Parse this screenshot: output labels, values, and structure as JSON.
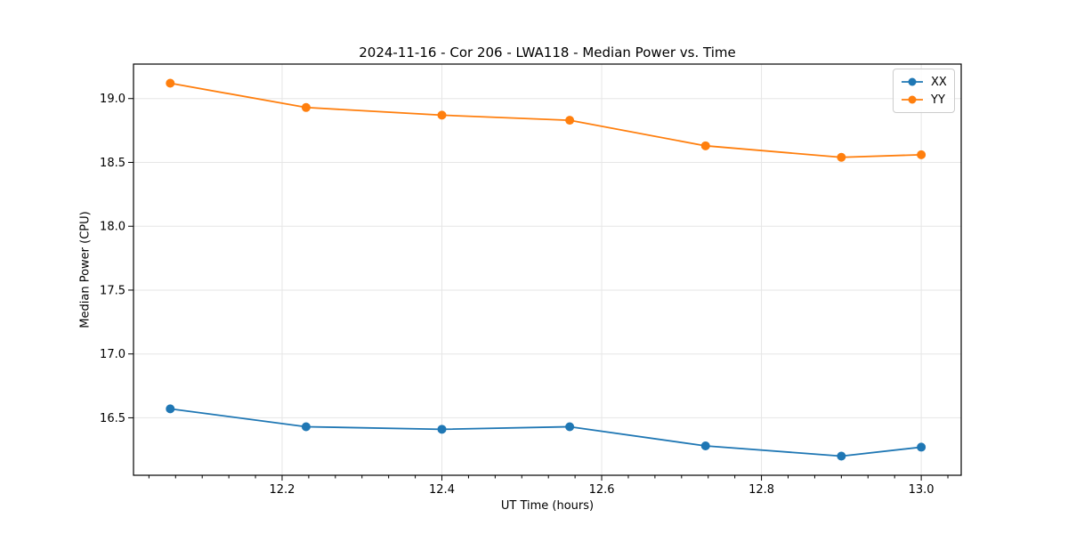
{
  "chart_data": {
    "type": "line",
    "title": "2024-11-16 - Cor 206 - LWA118 - Median Power vs. Time",
    "xlabel": "UT Time (hours)",
    "ylabel": "Median Power (CPU)",
    "xlim": [
      12.014,
      13.05
    ],
    "ylim": [
      16.05,
      19.27
    ],
    "x_ticks": [
      12.2,
      12.4,
      12.6,
      12.8,
      13.0
    ],
    "x_tick_labels": [
      "12.2",
      "12.4",
      "12.6",
      "12.8",
      "13.0"
    ],
    "x_minor_divisions": 6,
    "y_ticks": [
      16.5,
      17.0,
      17.5,
      18.0,
      18.5,
      19.0
    ],
    "y_tick_labels": [
      "16.5",
      "17.0",
      "17.5",
      "18.0",
      "18.5",
      "19.0"
    ],
    "grid": true,
    "legend_position": "upper right",
    "x": [
      12.06,
      12.23,
      12.4,
      12.56,
      12.73,
      12.9,
      13.0
    ],
    "series": [
      {
        "name": "XX",
        "color": "#1f77b4",
        "marker": "circle",
        "values": [
          16.57,
          16.43,
          16.41,
          16.43,
          16.28,
          16.2,
          16.27
        ]
      },
      {
        "name": "YY",
        "color": "#ff7f0e",
        "marker": "circle",
        "values": [
          19.12,
          18.93,
          18.87,
          18.83,
          18.63,
          18.54,
          18.56
        ]
      }
    ],
    "colors": {
      "grid": "#e6e6e6",
      "spine": "#000000",
      "text": "#000000",
      "background": "#ffffff"
    }
  }
}
